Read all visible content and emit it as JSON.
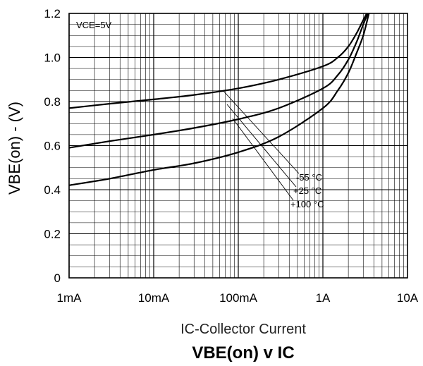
{
  "chart_data": {
    "type": "line",
    "title_main": "VBE(on)",
    "title_suffix": " v IC",
    "xlabel": "IC-Collector Current",
    "ylabel": "VBE(on) - (V)",
    "xscale": "log",
    "xlim": [
      0.001,
      10
    ],
    "ylim": [
      0,
      1.2
    ],
    "grid": true,
    "annotation": "VCE=5V",
    "x_tick_labels": [
      "1mA",
      "10mA",
      "100mA",
      "1A",
      "10A"
    ],
    "y_tick_labels": [
      "0",
      "0.2",
      "0.4",
      "0.6",
      "0.8",
      "1.0",
      "1.2"
    ],
    "legend": [
      "-55 °C",
      "+25 °C",
      "+100 °C"
    ],
    "series": [
      {
        "name": "-55 °C",
        "x": [
          0.001,
          0.003,
          0.01,
          0.03,
          0.1,
          0.3,
          1,
          1.5,
          2,
          2.5,
          3,
          3.3
        ],
        "y": [
          0.77,
          0.79,
          0.81,
          0.83,
          0.86,
          0.9,
          0.96,
          1.0,
          1.05,
          1.11,
          1.17,
          1.2
        ]
      },
      {
        "name": "+25 °C",
        "x": [
          0.001,
          0.003,
          0.01,
          0.03,
          0.1,
          0.3,
          1,
          1.5,
          2,
          2.5,
          3,
          3.4
        ],
        "y": [
          0.59,
          0.62,
          0.65,
          0.68,
          0.72,
          0.77,
          0.86,
          0.92,
          0.99,
          1.07,
          1.15,
          1.2
        ]
      },
      {
        "name": "+100 °C",
        "x": [
          0.001,
          0.003,
          0.01,
          0.03,
          0.1,
          0.3,
          1,
          1.5,
          2,
          2.5,
          3,
          3.5
        ],
        "y": [
          0.42,
          0.45,
          0.49,
          0.52,
          0.57,
          0.64,
          0.77,
          0.85,
          0.93,
          1.02,
          1.1,
          1.2
        ]
      }
    ]
  }
}
